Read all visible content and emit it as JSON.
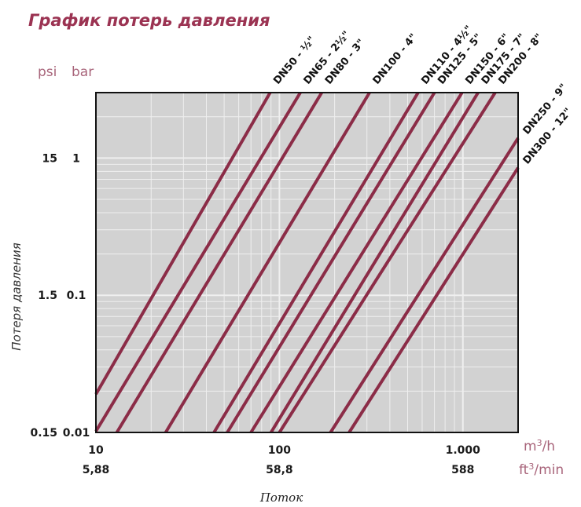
{
  "chart_data": {
    "type": "line",
    "title": "График потерь давления",
    "ylabel": "Потеря давления",
    "xlabel": "Поток",
    "y_unit_labels": {
      "psi": "psi",
      "bar": "bar"
    },
    "x_unit_labels": {
      "primary": "m3/h",
      "secondary": "ft3/min"
    },
    "x_scale": "log",
    "y_scale": "log",
    "xlim": [
      10,
      2000
    ],
    "ylim": [
      0.01,
      3
    ],
    "grid": true,
    "x_ticks": [
      {
        "value": 10,
        "primary": "10",
        "secondary": "5,88"
      },
      {
        "value": 100,
        "primary": "100",
        "secondary": "58,8"
      },
      {
        "value": 1000,
        "primary": "1.000",
        "secondary": "588"
      }
    ],
    "y_ticks": [
      {
        "value": 1,
        "psi": "15",
        "bar": "1"
      },
      {
        "value": 0.1,
        "psi": "1.5",
        "bar": "0.1"
      },
      {
        "value": 0.01,
        "psi": "0.15",
        "bar": "0.01"
      }
    ],
    "series": [
      {
        "name": "DN50 - ½\"",
        "x": [
          10,
          89
        ],
        "y": [
          0.019,
          3
        ]
      },
      {
        "name": "DN65 - 2½\"",
        "x": [
          10,
          130
        ],
        "y": [
          0.0102,
          3
        ]
      },
      {
        "name": "DN80 - 3\"",
        "x": [
          13,
          170
        ],
        "y": [
          0.01,
          3
        ]
      },
      {
        "name": "DN100 - 4\"",
        "x": [
          24,
          310
        ],
        "y": [
          0.01,
          3
        ]
      },
      {
        "name": "DN110 - 4½\"",
        "x": [
          44,
          570
        ],
        "y": [
          0.01,
          3
        ]
      },
      {
        "name": "DN125 - 5\"",
        "x": [
          52,
          700
        ],
        "y": [
          0.01,
          3
        ]
      },
      {
        "name": "DN150 - 6\"",
        "x": [
          70,
          990
        ],
        "y": [
          0.01,
          3
        ]
      },
      {
        "name": "DN175 - 7\"",
        "x": [
          90,
          1210
        ],
        "y": [
          0.01,
          3
        ]
      },
      {
        "name": "DN200 - 8\"",
        "x": [
          100,
          1500
        ],
        "y": [
          0.01,
          3
        ]
      },
      {
        "name": "DN250 - 9\"",
        "x": [
          190,
          2000
        ],
        "y": [
          0.01,
          1.4
        ]
      },
      {
        "name": "DN300 - 12\"",
        "x": [
          240,
          2000
        ],
        "y": [
          0.01,
          0.85
        ]
      }
    ],
    "colors": {
      "line": "#8b2c47",
      "title": "#9b3352",
      "unit": "#a8647a",
      "plot_bg": "#d2d2d2",
      "grid": "#efefef",
      "frame": "#111111"
    }
  }
}
